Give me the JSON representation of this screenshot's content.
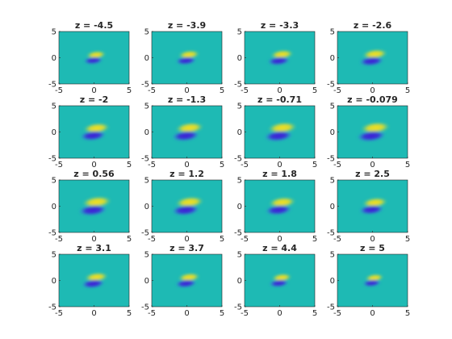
{
  "chart_data": {
    "type": "heatmap",
    "layout": "4x4 grid of subplots",
    "colormap": "parula",
    "background_color": "#1ebab4",
    "positive_color": "#f7e01c",
    "negative_color": "#3d1fd8",
    "xlim": [
      -5,
      5
    ],
    "ylim": [
      -5,
      5
    ],
    "xticks": [
      "-5",
      "0",
      "5"
    ],
    "yticks": [
      "5",
      "0",
      "-5"
    ],
    "grid": false,
    "panels": [
      {
        "title": "z = -4.5",
        "z": -4.5
      },
      {
        "title": "z = -3.9",
        "z": -3.9
      },
      {
        "title": "z = -3.3",
        "z": -3.3
      },
      {
        "title": "z = -2.6",
        "z": -2.6
      },
      {
        "title": "z = -2",
        "z": -2
      },
      {
        "title": "z = -1.3",
        "z": -1.3
      },
      {
        "title": "z = -0.71",
        "z": -0.71
      },
      {
        "title": "z = -0.079",
        "z": -0.079
      },
      {
        "title": "z = 0.56",
        "z": 0.56
      },
      {
        "title": "z = 1.2",
        "z": 1.2
      },
      {
        "title": "z = 1.8",
        "z": 1.8
      },
      {
        "title": "z = 2.5",
        "z": 2.5
      },
      {
        "title": "z = 3.1",
        "z": 3.1
      },
      {
        "title": "z = 3.7",
        "z": 3.7
      },
      {
        "title": "z = 4.4",
        "z": 4.4
      },
      {
        "title": "z = 5",
        "z": 5
      }
    ]
  }
}
